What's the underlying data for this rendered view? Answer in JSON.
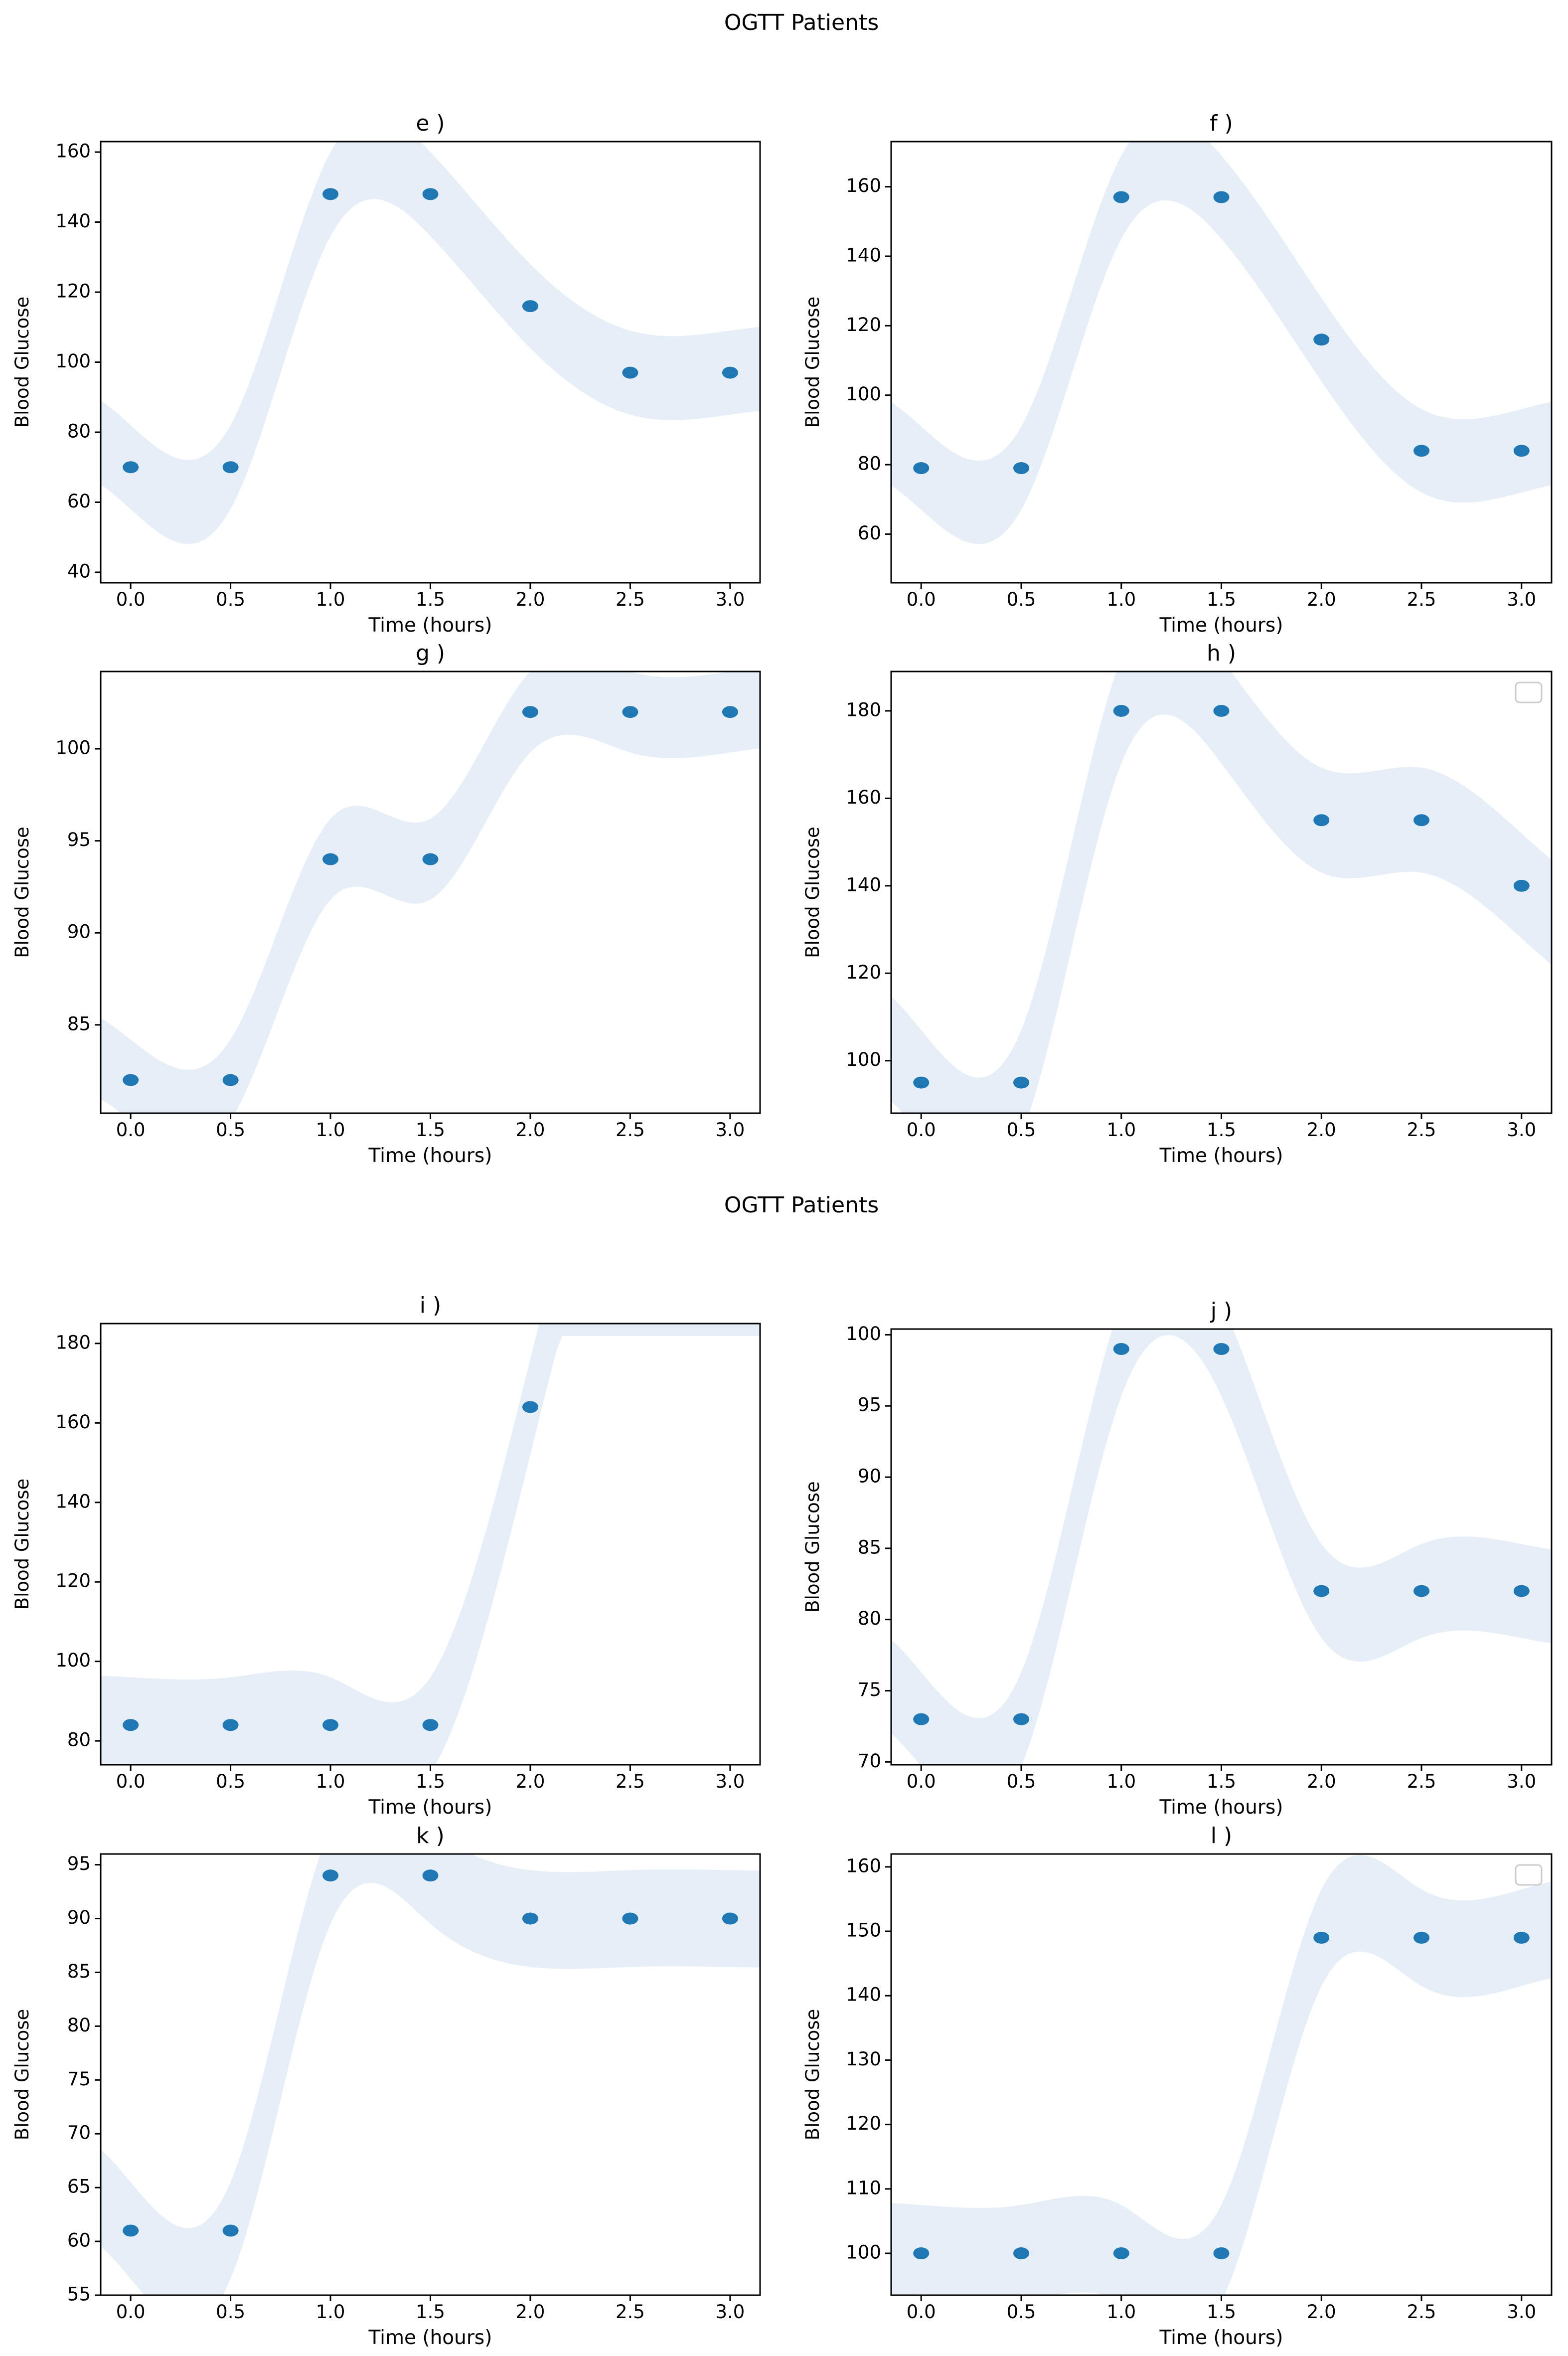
{
  "figure_titles": [
    "OGTT Patients",
    "OGTT Patients"
  ],
  "colors": {
    "marker": "#1f77b4",
    "band": "#e6eff8",
    "axis": "#000000"
  },
  "chart_data": [
    {
      "id": "e",
      "type": "scatter",
      "title": "e )",
      "xlabel": "Time (hours)",
      "ylabel": "Blood Glucose",
      "x": [
        0.0,
        0.5,
        1.0,
        1.5,
        2.0,
        2.5,
        3.0
      ],
      "y": [
        70,
        70,
        148,
        148,
        116,
        97,
        97
      ],
      "xlim": [
        -0.15,
        3.15
      ],
      "ylim": [
        37,
        163
      ],
      "xticks": [
        0.0,
        0.5,
        1.0,
        1.5,
        2.0,
        2.5,
        3.0
      ],
      "xtick_labels": [
        "0.0",
        "0.5",
        "1.0",
        "1.5",
        "2.0",
        "2.5",
        "3.0"
      ],
      "yticks": [
        40,
        60,
        80,
        100,
        120,
        140,
        160
      ],
      "ytick_labels": [
        "40",
        "60",
        "80",
        "100",
        "120",
        "140",
        "160"
      ],
      "band_halfwidth": 12,
      "legend": false
    },
    {
      "id": "f",
      "type": "scatter",
      "title": "f )",
      "xlabel": "Time (hours)",
      "ylabel": "Blood Glucose",
      "x": [
        0.0,
        0.5,
        1.0,
        1.5,
        2.0,
        2.5,
        3.0
      ],
      "y": [
        79,
        79,
        157,
        157,
        116,
        84,
        84
      ],
      "xlim": [
        -0.15,
        3.15
      ],
      "ylim": [
        46,
        173
      ],
      "xticks": [
        0.0,
        0.5,
        1.0,
        1.5,
        2.0,
        2.5,
        3.0
      ],
      "xtick_labels": [
        "0.0",
        "0.5",
        "1.0",
        "1.5",
        "2.0",
        "2.5",
        "3.0"
      ],
      "yticks": [
        60,
        80,
        100,
        120,
        140,
        160
      ],
      "ytick_labels": [
        "60",
        "80",
        "100",
        "120",
        "140",
        "160"
      ],
      "band_halfwidth": 12,
      "legend": false
    },
    {
      "id": "g",
      "type": "scatter",
      "title": "g )",
      "xlabel": "Time (hours)",
      "ylabel": "Blood Glucose",
      "x": [
        0.0,
        0.5,
        1.0,
        1.5,
        2.0,
        2.5,
        3.0
      ],
      "y": [
        82,
        82,
        94,
        94,
        102,
        102,
        102
      ],
      "xlim": [
        -0.15,
        3.15
      ],
      "ylim": [
        80.2,
        104.2
      ],
      "xticks": [
        0.0,
        0.5,
        1.0,
        1.5,
        2.0,
        2.5,
        3.0
      ],
      "xtick_labels": [
        "0.0",
        "0.5",
        "1.0",
        "1.5",
        "2.0",
        "2.5",
        "3.0"
      ],
      "yticks": [
        85,
        90,
        95,
        100
      ],
      "ytick_labels": [
        "85",
        "90",
        "95",
        "100"
      ],
      "band_halfwidth": 2.2,
      "legend": false
    },
    {
      "id": "h",
      "type": "scatter",
      "title": "h )",
      "xlabel": "Time (hours)",
      "ylabel": "Blood Glucose",
      "x": [
        0.0,
        0.5,
        1.0,
        1.5,
        2.0,
        2.5,
        3.0
      ],
      "y": [
        95,
        95,
        180,
        180,
        155,
        155,
        140
      ],
      "xlim": [
        -0.15,
        3.15
      ],
      "ylim": [
        88,
        189
      ],
      "xticks": [
        0.0,
        0.5,
        1.0,
        1.5,
        2.0,
        2.5,
        3.0
      ],
      "xtick_labels": [
        "0.0",
        "0.5",
        "1.0",
        "1.5",
        "2.0",
        "2.5",
        "3.0"
      ],
      "yticks": [
        100,
        120,
        140,
        160,
        180
      ],
      "ytick_labels": [
        "100",
        "120",
        "140",
        "160",
        "180"
      ],
      "band_halfwidth": 12,
      "legend": true
    },
    {
      "id": "i",
      "type": "scatter",
      "title": "i )",
      "xlabel": "Time (hours)",
      "ylabel": "Blood Glucose",
      "x": [
        0.0,
        0.5,
        1.0,
        1.5,
        2.0,
        2.5,
        3.0
      ],
      "y": [
        84,
        84,
        84,
        84,
        164,
        null,
        null
      ],
      "xlim": [
        -0.15,
        3.15
      ],
      "ylim": [
        74,
        185
      ],
      "xticks": [
        0.0,
        0.5,
        1.0,
        1.5,
        2.0,
        2.5,
        3.0
      ],
      "xtick_labels": [
        "0.0",
        "0.5",
        "1.0",
        "1.5",
        "2.0",
        "2.5",
        "3.0"
      ],
      "yticks": [
        80,
        100,
        120,
        140,
        160,
        180
      ],
      "ytick_labels": [
        "80",
        "100",
        "120",
        "140",
        "160",
        "180"
      ],
      "band_halfwidth": 12,
      "legend": false
    },
    {
      "id": "j",
      "type": "scatter",
      "title": "j )",
      "xlabel": "Time (hours)",
      "ylabel": "Blood Glucose",
      "x": [
        0.0,
        0.5,
        1.0,
        1.5,
        2.0,
        2.5,
        3.0
      ],
      "y": [
        73,
        73,
        99,
        99,
        82,
        82,
        82
      ],
      "xlim": [
        -0.15,
        3.15
      ],
      "ylim": [
        69.8,
        100.4
      ],
      "xticks": [
        0.0,
        0.5,
        1.0,
        1.5,
        2.0,
        2.5,
        3.0
      ],
      "xtick_labels": [
        "0.0",
        "0.5",
        "1.0",
        "1.5",
        "2.0",
        "2.5",
        "3.0"
      ],
      "yticks": [
        70,
        75,
        80,
        85,
        90,
        95,
        100
      ],
      "ytick_labels": [
        "70",
        "75",
        "80",
        "85",
        "90",
        "95",
        "100"
      ],
      "band_halfwidth": 3.3,
      "legend": false
    },
    {
      "id": "k",
      "type": "scatter",
      "title": "k )",
      "xlabel": "Time (hours)",
      "ylabel": "Blood Glucose",
      "x": [
        0.0,
        0.5,
        1.0,
        1.5,
        2.0,
        2.5,
        3.0
      ],
      "y": [
        61,
        61,
        94,
        94,
        90,
        90,
        90
      ],
      "xlim": [
        -0.15,
        3.15
      ],
      "ylim": [
        55,
        96
      ],
      "xticks": [
        0.0,
        0.5,
        1.0,
        1.5,
        2.0,
        2.5,
        3.0
      ],
      "xtick_labels": [
        "0.0",
        "0.5",
        "1.0",
        "1.5",
        "2.0",
        "2.5",
        "3.0"
      ],
      "yticks": [
        55,
        60,
        65,
        70,
        75,
        80,
        85,
        90,
        95
      ],
      "ytick_labels": [
        "55",
        "60",
        "65",
        "70",
        "75",
        "80",
        "85",
        "90",
        "95"
      ],
      "band_halfwidth": 4.5,
      "legend": false
    },
    {
      "id": "l",
      "type": "scatter",
      "title": "l )",
      "xlabel": "Time (hours)",
      "ylabel": "Blood Glucose",
      "x": [
        0.0,
        0.5,
        1.0,
        1.5,
        2.0,
        2.5,
        3.0
      ],
      "y": [
        100,
        100,
        100,
        100,
        149,
        149,
        149
      ],
      "xlim": [
        -0.15,
        3.15
      ],
      "ylim": [
        93.5,
        162
      ],
      "xticks": [
        0.0,
        0.5,
        1.0,
        1.5,
        2.0,
        2.5,
        3.0
      ],
      "xtick_labels": [
        "0.0",
        "0.5",
        "1.0",
        "1.5",
        "2.0",
        "2.5",
        "3.0"
      ],
      "yticks": [
        100,
        110,
        120,
        130,
        140,
        150,
        160
      ],
      "ytick_labels": [
        "100",
        "110",
        "120",
        "130",
        "140",
        "150",
        "160"
      ],
      "band_halfwidth": 7.5,
      "legend": true
    }
  ]
}
